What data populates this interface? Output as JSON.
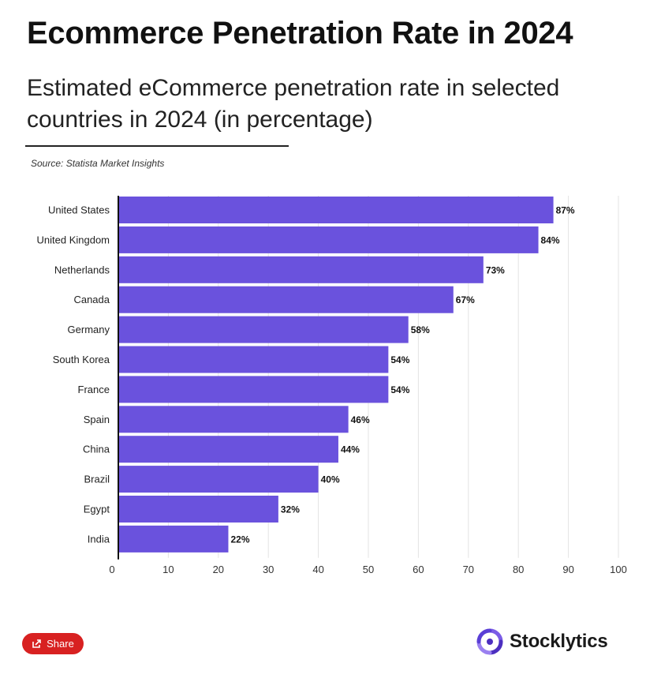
{
  "header": {
    "title": "Ecommerce Penetration Rate in 2024",
    "subtitle": "Estimated eCommerce penetration rate in selected countries in 2024 (in percentage)",
    "source": "Source: Statista Market Insights"
  },
  "footer": {
    "share_label": "Share",
    "brand_name": "Stocklytics"
  },
  "colors": {
    "bar": "#6a52dd",
    "share_button": "#d82121",
    "brand_purple": "#7b5ce6"
  },
  "chart_data": {
    "type": "bar",
    "orientation": "horizontal",
    "title": "Ecommerce Penetration Rate in 2024",
    "xlabel": "",
    "ylabel": "",
    "xlim": [
      0,
      100
    ],
    "ticks": [
      0,
      10,
      20,
      30,
      40,
      50,
      60,
      70,
      80,
      90,
      100
    ],
    "grid": true,
    "value_suffix": "%",
    "categories": [
      "United States",
      "United Kingdom",
      "Netherlands",
      "Canada",
      "Germany",
      "South Korea",
      "France",
      "Spain",
      "China",
      "Brazil",
      "Egypt",
      "India"
    ],
    "values": [
      87,
      84,
      73,
      67,
      58,
      54,
      54,
      46,
      44,
      40,
      32,
      22
    ]
  }
}
